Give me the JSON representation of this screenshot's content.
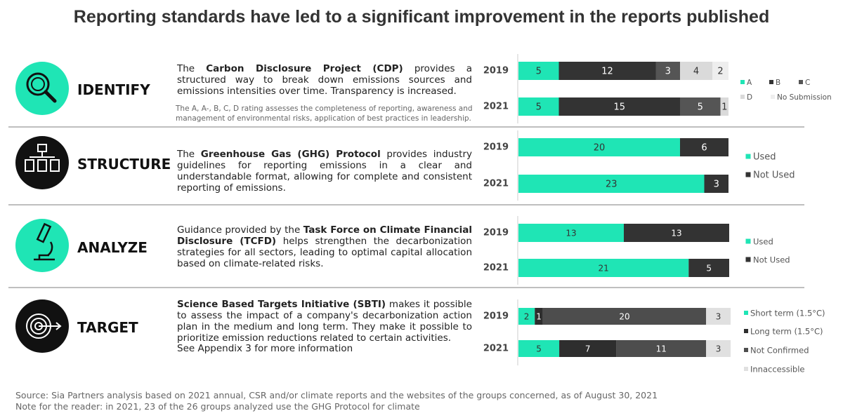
{
  "title": "Reporting standards have led to a significant improvement in the reports published",
  "sections": [
    {
      "label": "IDENTIFY",
      "text": [
        {
          "text": "The ",
          "bold": false
        },
        {
          "text": "Carbon Disclosure Project (CDP)",
          "bold": true
        },
        {
          "text": " provides a structured way to break down emissions sources and emissions intensities over time. Transparency is increased.",
          "bold": false
        }
      ],
      "note": "The A, A-, B, C, D rating assesses the completeness of reporting, awareness and management of environmental risks, application of best practices in leadership."
    },
    {
      "label": "STRUCTURE",
      "text": [
        {
          "text": "The ",
          "bold": false
        },
        {
          "text": "Greenhouse Gas (GHG) Protocol",
          "bold": true
        },
        {
          "text": " provides industry guidelines for reporting emissions in a clear and understandable format, allowing for complete and consistent reporting of emissions.",
          "bold": false
        }
      ]
    },
    {
      "label": "ANALYZE",
      "text": [
        {
          "text": "Guidance provided by the ",
          "bold": false
        },
        {
          "text": "Task Force on Climate Financial Disclosure (TCFD)",
          "bold": true
        },
        {
          "text": " helps strengthen the decarbonization strategies for all sectors, leading to optimal capital allocation based on climate-related risks.",
          "bold": false
        }
      ]
    },
    {
      "label": "TARGET",
      "text": [
        {
          "text": "Science Based Targets Initiative (SBTI)",
          "bold": true
        },
        {
          "text": " makes it possible to assess the impact of a company's decarbonization action plan in the medium and long term. They make it possible to prioritize emission reductions related to certain activities.",
          "bold": false
        }
      ],
      "note": "See Appendix 3 for more information"
    }
  ],
  "chart_data": [
    {
      "type": "stacked_bar_h",
      "categories": [
        "2019",
        "2021"
      ],
      "xlim": [
        0,
        26
      ],
      "series": [
        {
          "name": "A",
          "color": "#1fe5b5",
          "values": [
            5,
            5
          ]
        },
        {
          "name": "B",
          "color": "#333333",
          "values": [
            12,
            15
          ]
        },
        {
          "name": "C",
          "color": "#555555",
          "values": [
            3,
            5
          ]
        },
        {
          "name": "D",
          "color": "#dadada",
          "values": [
            4,
            1
          ]
        },
        {
          "name": "No Submission",
          "color": "#eeeeee",
          "values": [
            2,
            null
          ]
        }
      ]
    },
    {
      "type": "stacked_bar_h",
      "categories": [
        "2019",
        "2021"
      ],
      "xlim": [
        0,
        26
      ],
      "series": [
        {
          "name": "Used",
          "color": "#1fe5b5",
          "values": [
            20,
            23
          ]
        },
        {
          "name": "Not Used",
          "color": "#333333",
          "values": [
            6,
            3
          ]
        }
      ]
    },
    {
      "type": "stacked_bar_h",
      "categories": [
        "2019",
        "2021"
      ],
      "xlim": [
        0,
        26
      ],
      "series": [
        {
          "name": "Used",
          "color": "#1fe5b5",
          "values": [
            13,
            21
          ]
        },
        {
          "name": "Not Used",
          "color": "#333333",
          "values": [
            13,
            5
          ]
        }
      ]
    },
    {
      "type": "stacked_bar_h",
      "categories": [
        "2019",
        "2021"
      ],
      "xlim": [
        0,
        26
      ],
      "series": [
        {
          "name": "Short term (1.5°C)",
          "color": "#1fe5b5",
          "values": [
            2,
            5
          ]
        },
        {
          "name": "Long term (1.5°C)",
          "color": "#2e2e2e",
          "values": [
            1,
            7
          ]
        },
        {
          "name": "Not Confirmed",
          "color": "#4d4d4d",
          "values": [
            20,
            11
          ]
        },
        {
          "name": "Innaccessible",
          "color": "#e0e0e0",
          "values": [
            3,
            3
          ]
        }
      ]
    }
  ],
  "footnotes": [
    "Source: Sia Partners analysis based on 2021 annual, CSR and/or climate reports and the websites of the groups concerned, as of August 30, 2021",
    "Note for the reader: in 2021, 23 of the 26 groups analyzed use the GHG Protocol for climate"
  ]
}
